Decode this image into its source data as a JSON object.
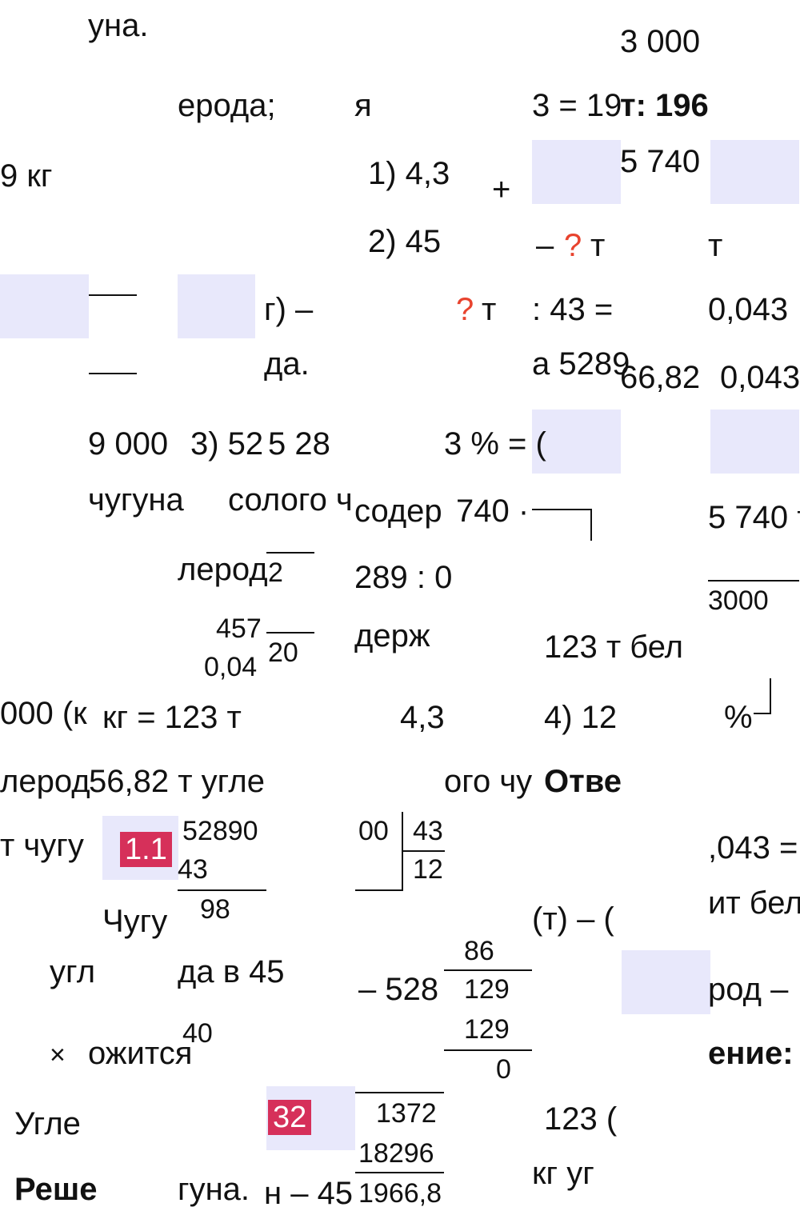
{
  "fragments": [
    "уна.",
    "3 000",
    "ерода;",
    "я",
    "3 = 19",
    "т: 196",
    "9 кг",
    "1) 4,3",
    "+",
    "5 740",
    "2) 45",
    "–",
    "?",
    "т",
    "т",
    "г) –",
    "?",
    "т",
    ": 43 =",
    "0,043",
    "да.",
    "а 5289",
    "66,82",
    "0,043",
    "9 000",
    "3) 52",
    "5 28",
    "3 % = (",
    "чугуна",
    "солого ч",
    "содер",
    "740 ·",
    "5 740 т",
    "лерод",
    "2",
    "289 : 0",
    "3000",
    "457",
    "20",
    "держ",
    "123 т бел",
    "0,04",
    "000 (к",
    "кг = 123 т",
    "4,3",
    "4) 12",
    "%",
    "лерод",
    "56,82 т угле",
    "ого чу",
    "Отве",
    "т чугу",
    "1.1",
    "52890",
    "43",
    "00",
    "43",
    "12",
    ",043 =",
    "98",
    "Чугу",
    "(т) – (",
    "ит бел",
    "86",
    "угл",
    "да в 45",
    "– 528",
    "129",
    "род –",
    "40",
    "129",
    "×",
    "ожится",
    "ение:",
    "0",
    "32",
    "1372",
    "123 (",
    "Угле",
    "18296",
    "кг уг",
    "Реше",
    "гуна.",
    "н – 45",
    "1966,8"
  ]
}
